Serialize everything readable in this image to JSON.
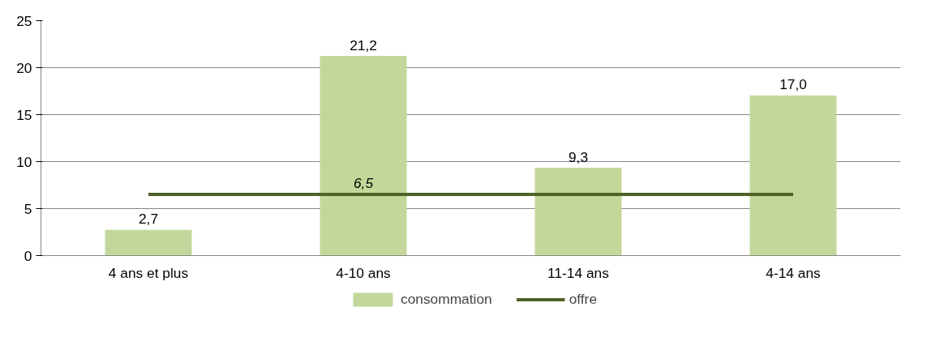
{
  "chart_data": {
    "type": "bar",
    "categories": [
      "4 ans et plus",
      "4-10 ans",
      "11-14 ans",
      "4-14 ans"
    ],
    "series": [
      {
        "name": "consommation",
        "color": "#c4d79b",
        "values": [
          2.7,
          21.2,
          9.3,
          17.0
        ],
        "value_labels": [
          "2,7",
          "21,2",
          "9,3",
          "17,0"
        ]
      },
      {
        "name": "offre",
        "type": "line",
        "color": "#4f6228",
        "values": [
          6.5,
          6.5,
          6.5,
          6.5
        ],
        "value_labels": [
          null,
          "6,5",
          null,
          null
        ]
      }
    ],
    "ylim": [
      0,
      25
    ],
    "yticks": [
      0,
      5,
      10,
      15,
      20,
      25
    ],
    "grid": "y",
    "legend": "bottom"
  }
}
